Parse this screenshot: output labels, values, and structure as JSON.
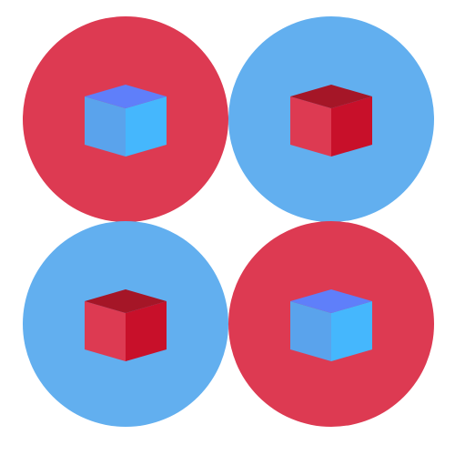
{
  "colors": {
    "background": "#ffffff",
    "red_circle": "#dd3a52",
    "blue_circle": "#62afef",
    "blue_cube": {
      "top": "#5f7ffa",
      "left": "#5aa3ec",
      "right": "#45b7fd"
    },
    "red_cube": {
      "top": "#a51627",
      "left": "#dd3a52",
      "right": "#c8102a"
    }
  },
  "tiles": [
    {
      "circle": "red-circle",
      "cube": "blue-cube"
    },
    {
      "circle": "blue-circle",
      "cube": "red-cube"
    },
    {
      "circle": "blue-circle",
      "cube": "red-cube"
    },
    {
      "circle": "red-circle",
      "cube": "blue-cube"
    }
  ]
}
